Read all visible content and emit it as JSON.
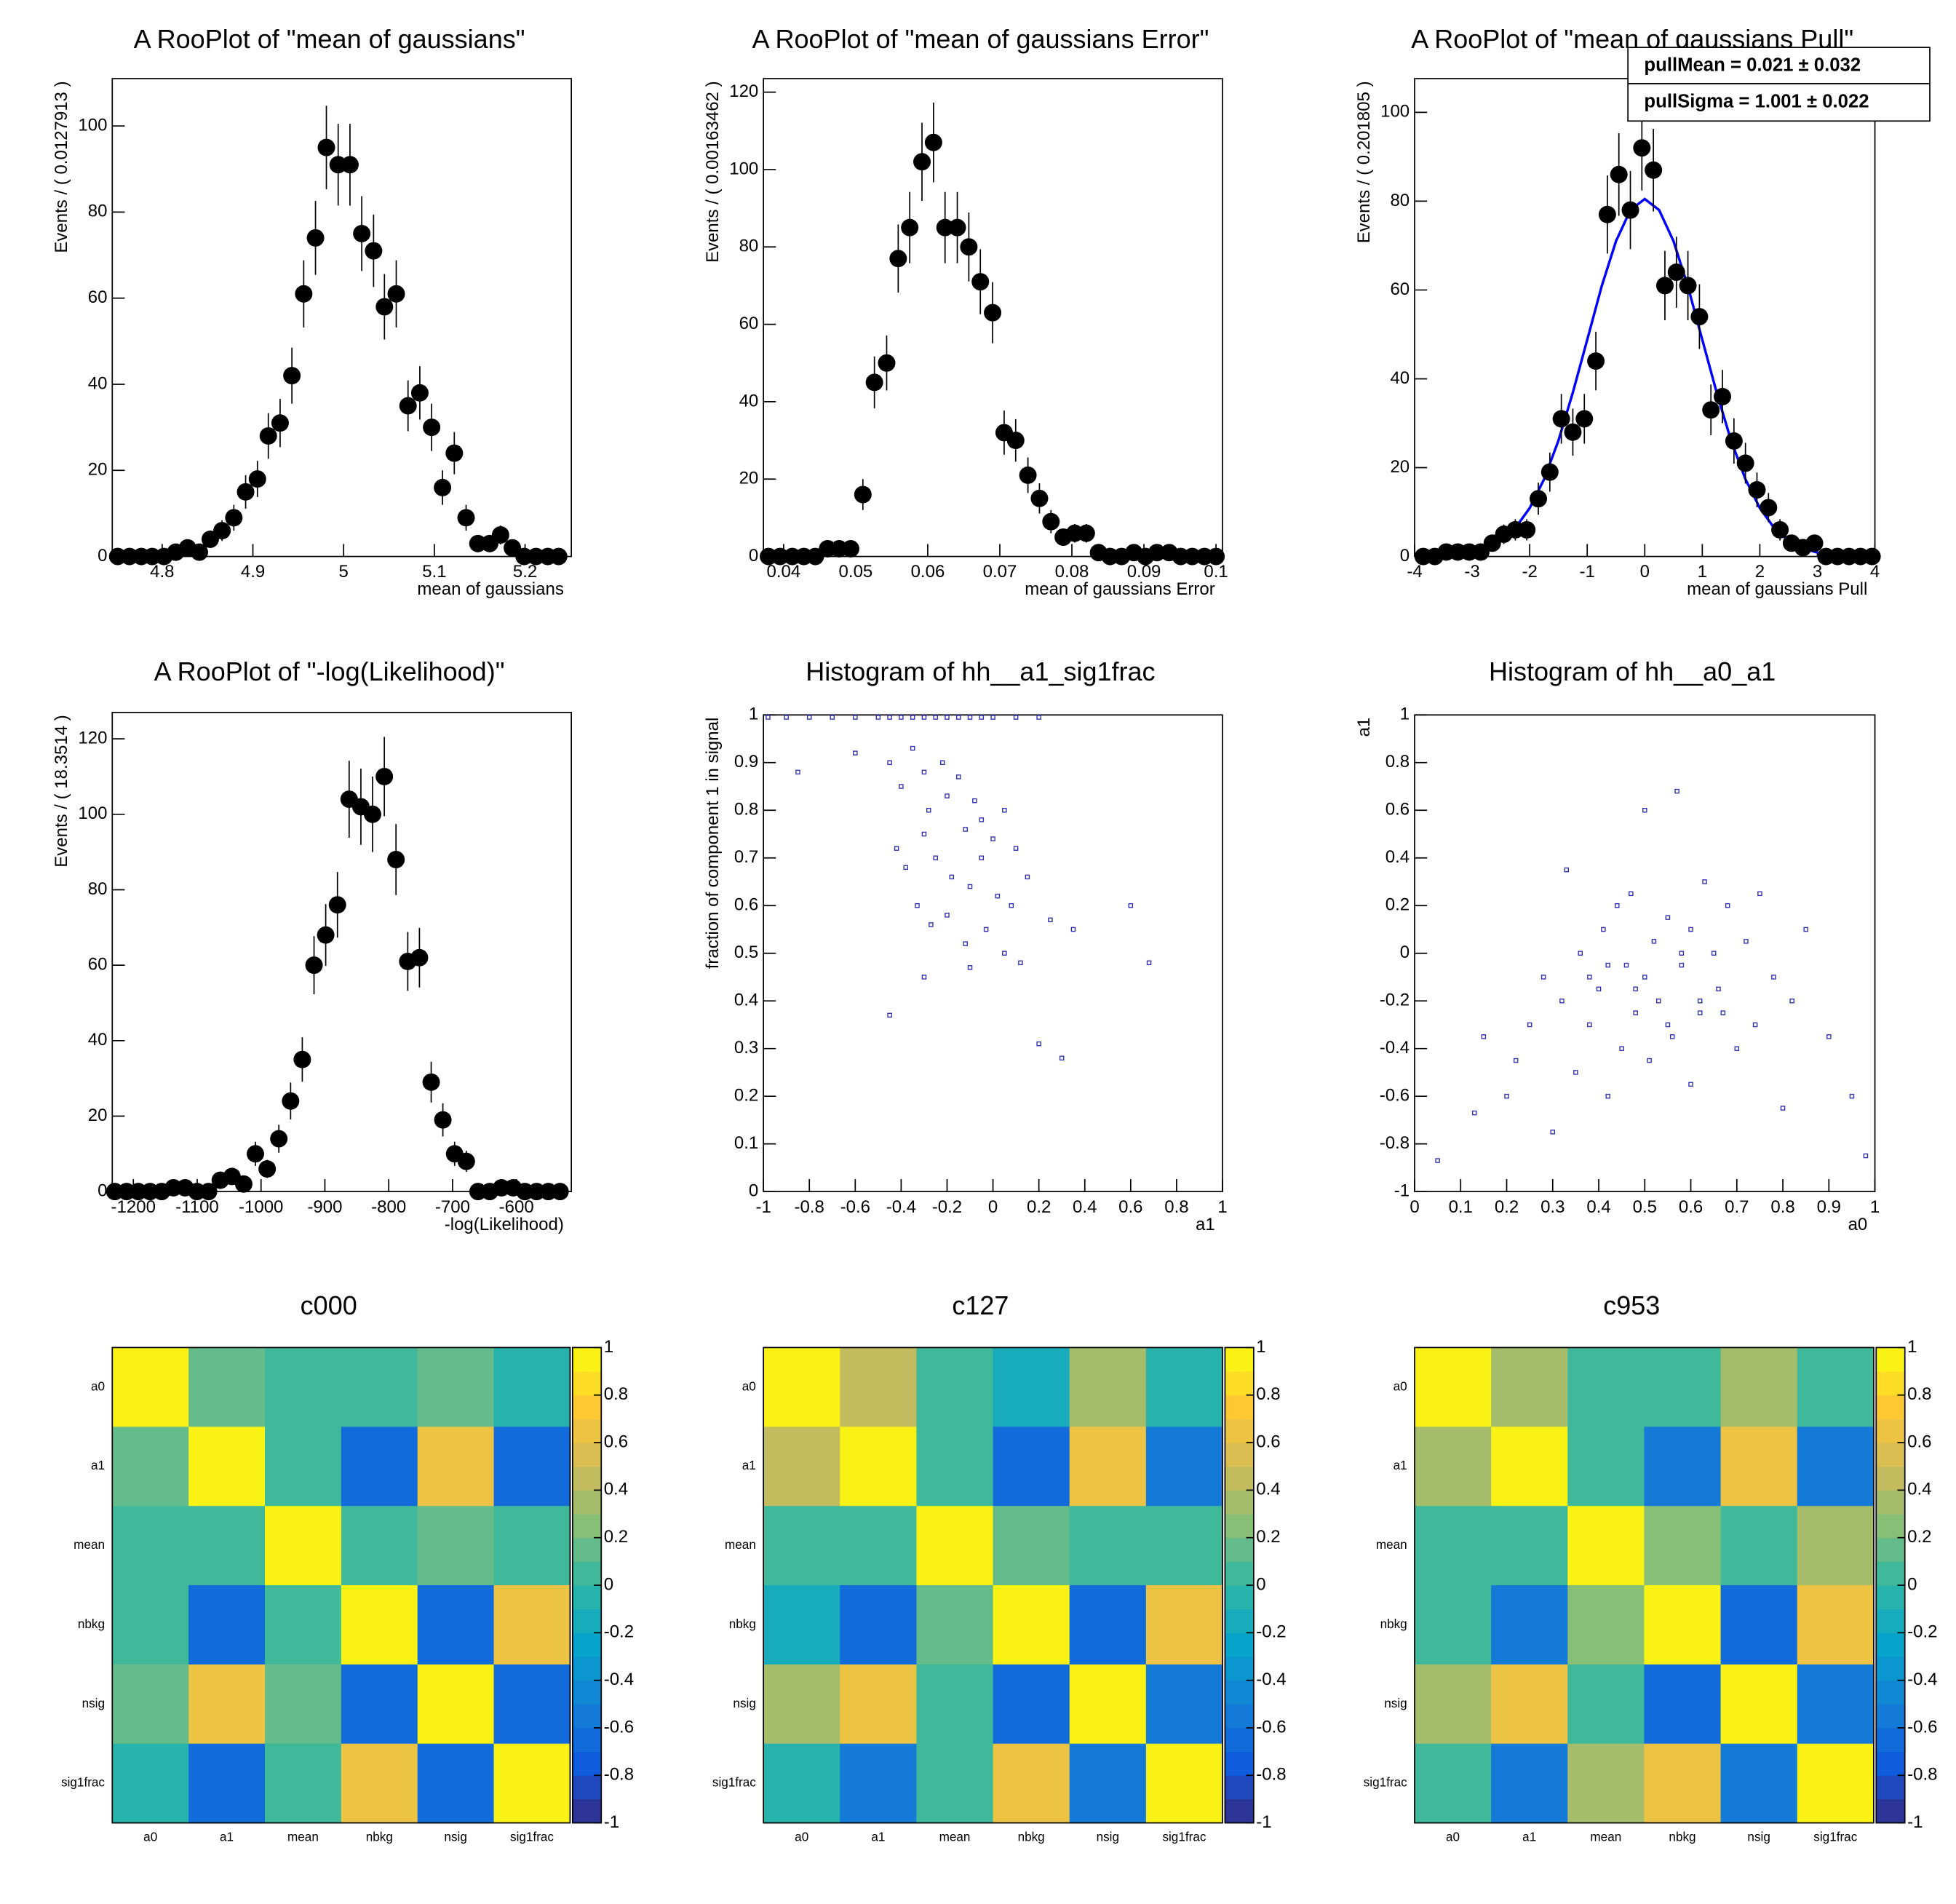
{
  "chart_data": [
    {
      "type": "errorbar",
      "title": "A RooPlot of \"mean of gaussians\"",
      "xlabel": "mean of gaussians",
      "ylabel": "Events / ( 0.0127913 )",
      "color": "#000000",
      "x": [
        4.751,
        4.764,
        4.777,
        4.789,
        4.802,
        4.815,
        4.828,
        4.841,
        4.853,
        4.866,
        4.879,
        4.892,
        4.905,
        4.917,
        4.93,
        4.943,
        4.956,
        4.969,
        4.981,
        4.994,
        5.007,
        5.02,
        5.033,
        5.045,
        5.058,
        5.071,
        5.084,
        5.097,
        5.109,
        5.122,
        5.135,
        5.148,
        5.161,
        5.173,
        5.186,
        5.199,
        5.212,
        5.225,
        5.237
      ],
      "values": [
        0,
        0,
        0,
        0,
        0,
        1,
        2,
        1,
        4,
        6,
        9,
        15,
        18,
        28,
        31,
        42,
        61,
        74,
        95,
        91,
        91,
        75,
        71,
        58,
        61,
        35,
        38,
        30,
        16,
        24,
        9,
        3,
        3,
        5,
        2,
        0,
        0,
        0,
        0
      ],
      "errors": [
        0,
        0,
        0,
        0,
        0,
        1,
        1.4,
        1,
        2,
        2.4,
        3,
        3.9,
        4.2,
        5.3,
        5.6,
        6.5,
        7.8,
        8.6,
        9.7,
        9.5,
        9.5,
        8.7,
        8.4,
        7.6,
        7.8,
        5.9,
        6.2,
        5.5,
        4,
        4.9,
        3,
        1.7,
        1.7,
        2.2,
        1.4,
        0,
        0,
        0,
        0
      ],
      "xlim": [
        4.745,
        5.251
      ],
      "xticks": [
        4.8,
        4.9,
        5,
        5.1,
        5.2
      ],
      "ylim": [
        0,
        111
      ],
      "yticks": [
        0,
        20,
        40,
        60,
        80,
        100
      ]
    },
    {
      "type": "errorbar",
      "title": "A RooPlot of \"mean of gaussians Error\"",
      "xlabel": "mean of gaussians Error",
      "ylabel": "Events / ( 0.00163462 )",
      "color": "#000000",
      "x": [
        0.0379,
        0.0395,
        0.0412,
        0.0428,
        0.0444,
        0.0461,
        0.0477,
        0.0493,
        0.051,
        0.0526,
        0.0543,
        0.0559,
        0.0575,
        0.0592,
        0.0608,
        0.0624,
        0.0641,
        0.0657,
        0.0673,
        0.069,
        0.0706,
        0.0722,
        0.0739,
        0.0755,
        0.0771,
        0.0788,
        0.0804,
        0.082,
        0.0837,
        0.0853,
        0.0869,
        0.0886,
        0.0902,
        0.0918,
        0.0935,
        0.0951,
        0.0967,
        0.0984,
        0.1
      ],
      "values": [
        0,
        0,
        0,
        0,
        0,
        2,
        2,
        2,
        16,
        45,
        50,
        77,
        85,
        102,
        107,
        85,
        85,
        80,
        71,
        63,
        32,
        30,
        21,
        15,
        9,
        5,
        6,
        6,
        1,
        0,
        0,
        1,
        0,
        1,
        1,
        0,
        0,
        0,
        0
      ],
      "errors": [
        0,
        0,
        0,
        0,
        0,
        1.4,
        1.4,
        1.4,
        4,
        6.7,
        7.1,
        8.8,
        9.2,
        10.1,
        10.3,
        9.2,
        9.2,
        8.9,
        8.4,
        7.9,
        5.7,
        5.5,
        4.6,
        3.9,
        3,
        2.2,
        2.4,
        2.4,
        1,
        0,
        0,
        1,
        0,
        1,
        1,
        0,
        0,
        0,
        0
      ],
      "xlim": [
        0.0372,
        0.1009
      ],
      "xticks": [
        0.04,
        0.05,
        0.06,
        0.07,
        0.08,
        0.09,
        0.1
      ],
      "ylim": [
        0,
        123.5
      ],
      "yticks": [
        0,
        20,
        40,
        60,
        80,
        100,
        120
      ]
    },
    {
      "type": "errorbar",
      "title": "A RooPlot of \"mean of gaussians Pull\"",
      "xlabel": "mean of gaussians Pull",
      "ylabel": "Events / ( 0.201805 )",
      "color": "#000000",
      "x": [
        -3.85,
        -3.65,
        -3.45,
        -3.25,
        -3.05,
        -2.85,
        -2.65,
        -2.45,
        -2.25,
        -2.05,
        -1.85,
        -1.65,
        -1.45,
        -1.25,
        -1.05,
        -0.85,
        -0.65,
        -0.45,
        -0.25,
        -0.05,
        0.15,
        0.35,
        0.55,
        0.75,
        0.95,
        1.15,
        1.35,
        1.55,
        1.75,
        1.95,
        2.15,
        2.35,
        2.55,
        2.75,
        2.95,
        3.15,
        3.35,
        3.55,
        3.75,
        3.95
      ],
      "values": [
        0,
        0,
        1,
        1,
        1,
        1,
        3,
        5,
        6,
        6,
        13,
        19,
        31,
        28,
        31,
        44,
        77,
        86,
        78,
        92,
        87,
        61,
        64,
        61,
        54,
        33,
        36,
        26,
        21,
        15,
        11,
        6,
        3,
        2,
        3,
        0,
        0,
        0,
        0,
        0
      ],
      "errors": [
        0,
        0,
        1,
        1,
        1,
        1,
        1.7,
        2.2,
        2.4,
        2.4,
        3.6,
        4.4,
        5.6,
        5.3,
        5.6,
        6.6,
        8.8,
        9.3,
        8.8,
        9.6,
        9.3,
        7.8,
        8,
        7.8,
        7.3,
        5.7,
        6,
        5.1,
        4.6,
        3.9,
        3.3,
        2.4,
        1.7,
        1.4,
        1.7,
        0,
        0,
        0,
        0,
        0
      ],
      "fit": {
        "color": "#0000ff",
        "x": [
          -4,
          -3.75,
          -3.5,
          -3.25,
          -3,
          -2.75,
          -2.5,
          -2.25,
          -2,
          -1.75,
          -1.5,
          -1.25,
          -1,
          -0.75,
          -0.5,
          -0.25,
          0,
          0.25,
          0.5,
          0.75,
          1,
          1.25,
          1.5,
          1.75,
          2,
          2.25,
          2.5,
          2.75,
          3,
          3.25,
          3.5,
          3.75,
          4
        ],
        "values": [
          0.03,
          0.07,
          0.18,
          0.41,
          0.89,
          1.84,
          3.53,
          6.41,
          10.9,
          17.4,
          26.1,
          36.9,
          48.8,
          60.8,
          71.0,
          78.0,
          80.5,
          78.0,
          71.0,
          60.8,
          48.8,
          36.9,
          26.1,
          17.4,
          10.9,
          6.41,
          3.53,
          1.84,
          0.89,
          0.41,
          0.18,
          0.07,
          0.03
        ]
      },
      "stats": [
        "pullMean =  0.021 ± 0.032",
        "pullSigma =  1.001 ± 0.022"
      ],
      "xlim": [
        -4,
        4
      ],
      "xticks": [
        -4,
        -3,
        -2,
        -1,
        0,
        1,
        2,
        3,
        4
      ],
      "ylim": [
        0,
        107.6
      ],
      "yticks": [
        0,
        20,
        40,
        60,
        80,
        100
      ]
    },
    {
      "type": "errorbar",
      "title": "A RooPlot of \"-log(Likelihood)\"",
      "xlabel": "-log(Likelihood)",
      "ylabel": "Events / ( 18.3514 )",
      "color": "#000000",
      "x": [
        -1229,
        -1210.6,
        -1192.3,
        -1173.9,
        -1155.6,
        -1137.2,
        -1118.9,
        -1100.5,
        -1082.2,
        -1063.8,
        -1045.5,
        -1027.1,
        -1008.8,
        -990.4,
        -972.1,
        -953.7,
        -935.4,
        -917.0,
        -898.7,
        -880.3,
        -862.0,
        -843.6,
        -825.3,
        -806.9,
        -788.6,
        -770.2,
        -751.9,
        -733.5,
        -715.2,
        -696.8,
        -678.5,
        -660.1,
        -641.8,
        -623.4,
        -605.1,
        -586.7,
        -568.4,
        -550.0,
        -531.7
      ],
      "values": [
        0,
        0,
        0,
        0,
        0,
        1,
        1,
        0,
        0,
        3,
        4,
        2,
        10,
        6,
        14,
        24,
        35,
        60,
        68,
        76,
        104,
        102,
        100,
        110,
        88,
        61,
        62,
        29,
        19,
        10,
        8,
        0,
        0,
        1,
        1,
        0,
        0,
        0,
        0
      ],
      "errors": [
        0,
        0,
        0,
        0,
        0,
        1,
        1,
        0,
        0,
        1.7,
        2,
        1.4,
        3.2,
        2.4,
        3.7,
        4.9,
        5.9,
        7.7,
        8.2,
        8.7,
        10.2,
        10.1,
        10,
        10.5,
        9.4,
        7.8,
        7.9,
        5.4,
        4.4,
        3.2,
        2.8,
        0,
        0,
        1,
        1,
        0,
        0,
        0,
        0
      ],
      "xlim": [
        -1233,
        -514
      ],
      "xticks": [
        -1200,
        -1100,
        -1000,
        -900,
        -800,
        -700,
        -600
      ],
      "ylim": [
        0,
        127
      ],
      "yticks": [
        0,
        20,
        40,
        60,
        80,
        100,
        120
      ]
    },
    {
      "type": "scatter",
      "title": "Histogram of hh__a1_sig1frac",
      "xlabel": "a1",
      "ylabel": "fraction of component 1 in signal",
      "color": "#3030b0",
      "x": [
        -0.98,
        -0.9,
        -0.8,
        -0.7,
        -0.6,
        -0.5,
        -0.45,
        -0.4,
        -0.35,
        -0.3,
        -0.25,
        -0.2,
        -0.15,
        -0.1,
        -0.05,
        0.0,
        0.1,
        0.2,
        -0.85,
        -0.6,
        -0.45,
        -0.4,
        -0.35,
        -0.3,
        -0.28,
        -0.22,
        -0.2,
        -0.15,
        -0.12,
        -0.08,
        -0.05,
        0.0,
        0.05,
        0.1,
        -0.42,
        -0.38,
        -0.3,
        -0.25,
        -0.18,
        -0.1,
        -0.05,
        0.02,
        0.08,
        0.15,
        -0.33,
        -0.27,
        -0.2,
        -0.12,
        -0.03,
        0.05,
        0.12,
        0.25,
        0.35,
        0.6,
        0.68,
        -0.45,
        -0.3,
        -0.1,
        0.2,
        0.3
      ],
      "values": [
        0.995,
        0.995,
        0.995,
        0.995,
        0.995,
        0.995,
        0.995,
        0.995,
        0.995,
        0.995,
        0.995,
        0.995,
        0.995,
        0.995,
        0.995,
        0.995,
        0.995,
        0.995,
        0.88,
        0.92,
        0.9,
        0.85,
        0.93,
        0.88,
        0.8,
        0.9,
        0.83,
        0.87,
        0.76,
        0.82,
        0.78,
        0.74,
        0.8,
        0.72,
        0.72,
        0.68,
        0.75,
        0.7,
        0.66,
        0.64,
        0.7,
        0.62,
        0.6,
        0.66,
        0.6,
        0.56,
        0.58,
        0.52,
        0.55,
        0.5,
        0.48,
        0.57,
        0.55,
        0.6,
        0.48,
        0.37,
        0.45,
        0.47,
        0.31,
        0.28
      ],
      "xlim": [
        -1,
        1
      ],
      "xticks": [
        -1,
        -0.8,
        -0.6,
        -0.4,
        -0.2,
        0,
        0.2,
        0.4,
        0.6,
        0.8,
        1
      ],
      "ylim": [
        0,
        1
      ],
      "yticks": [
        0,
        0.1,
        0.2,
        0.3,
        0.4,
        0.5,
        0.6,
        0.7,
        0.8,
        0.9,
        1
      ]
    },
    {
      "type": "scatter",
      "title": "Histogram of hh__a0_a1",
      "xlabel": "a0",
      "ylabel": "a1",
      "color": "#3030b0",
      "x": [
        0.05,
        0.13,
        0.15,
        0.2,
        0.22,
        0.25,
        0.28,
        0.3,
        0.32,
        0.33,
        0.35,
        0.36,
        0.38,
        0.4,
        0.41,
        0.42,
        0.44,
        0.45,
        0.46,
        0.47,
        0.48,
        0.5,
        0.5,
        0.51,
        0.52,
        0.53,
        0.55,
        0.56,
        0.57,
        0.58,
        0.6,
        0.6,
        0.62,
        0.63,
        0.65,
        0.66,
        0.68,
        0.7,
        0.72,
        0.74,
        0.75,
        0.78,
        0.8,
        0.82,
        0.85,
        0.9,
        0.95,
        0.98,
        0.42,
        0.55,
        0.62,
        0.38,
        0.48,
        0.58,
        0.67
      ],
      "values": [
        -0.87,
        -0.67,
        -0.35,
        -0.6,
        -0.45,
        -0.3,
        -0.1,
        -0.75,
        -0.2,
        0.35,
        -0.5,
        0.0,
        -0.3,
        -0.15,
        0.1,
        -0.6,
        0.2,
        -0.4,
        -0.05,
        0.25,
        -0.25,
        -0.1,
        0.6,
        -0.45,
        0.05,
        -0.2,
        0.15,
        -0.35,
        0.68,
        -0.05,
        0.1,
        -0.55,
        -0.25,
        0.3,
        0.0,
        -0.15,
        0.2,
        -0.4,
        0.05,
        -0.3,
        0.25,
        -0.1,
        -0.65,
        -0.2,
        0.1,
        -0.35,
        -0.6,
        -0.85,
        -0.05,
        -0.3,
        -0.2,
        -0.1,
        -0.15,
        0.0,
        -0.25
      ],
      "xlim": [
        0,
        1
      ],
      "xticks": [
        0,
        0.1,
        0.2,
        0.3,
        0.4,
        0.5,
        0.6,
        0.7,
        0.8,
        0.9,
        1
      ],
      "ylim": [
        -1,
        1
      ],
      "yticks": [
        -1,
        -0.8,
        -0.6,
        -0.4,
        -0.2,
        0,
        0.2,
        0.4,
        0.6,
        0.8,
        1
      ]
    },
    {
      "type": "heatmap",
      "title": "c000",
      "categories": [
        "a0",
        "a1",
        "mean",
        "nbkg",
        "nsig",
        "sig1frac"
      ],
      "y_categories": [
        "a0",
        "a1",
        "mean",
        "nbkg",
        "nsig",
        "sig1frac"
      ],
      "values": [
        [
          1,
          0.15,
          0.05,
          0.05,
          0.15,
          -0.05
        ],
        [
          0.15,
          1,
          0.05,
          -0.65,
          0.65,
          -0.65
        ],
        [
          0.05,
          0.05,
          1,
          0.05,
          0.15,
          0.05
        ],
        [
          0.05,
          -0.65,
          0.05,
          1,
          -0.65,
          0.65
        ],
        [
          0.15,
          0.65,
          0.15,
          -0.65,
          1,
          -0.65
        ],
        [
          -0.05,
          -0.65,
          0.05,
          0.65,
          -0.65,
          1
        ]
      ],
      "zlim": [
        -1,
        1
      ],
      "zticks": [
        -1,
        -0.8,
        -0.6,
        -0.4,
        -0.2,
        0,
        0.2,
        0.4,
        0.6,
        0.8,
        1
      ],
      "palette": [
        "#352a87",
        "#0f5cdd",
        "#1481d6",
        "#06a4ca",
        "#2eb7a4",
        "#87bf77",
        "#d1bb59",
        "#fec832",
        "#f9fb0e"
      ]
    },
    {
      "type": "heatmap",
      "title": "c127",
      "categories": [
        "a0",
        "a1",
        "mean",
        "nbkg",
        "nsig",
        "sig1frac"
      ],
      "y_categories": [
        "a0",
        "a1",
        "mean",
        "nbkg",
        "nsig",
        "sig1frac"
      ],
      "values": [
        [
          1,
          0.45,
          0.0,
          -0.15,
          0.3,
          -0.05
        ],
        [
          0.45,
          1,
          0.0,
          -0.65,
          0.65,
          -0.6
        ],
        [
          0.0,
          0.0,
          1,
          0.15,
          0.05,
          0.05
        ],
        [
          -0.15,
          -0.65,
          0.15,
          1,
          -0.7,
          0.65
        ],
        [
          0.3,
          0.65,
          0.0,
          -0.7,
          1,
          -0.55
        ],
        [
          -0.05,
          -0.6,
          0.05,
          0.65,
          -0.55,
          1
        ]
      ],
      "zlim": [
        -1,
        1
      ],
      "zticks": [
        -1,
        -0.8,
        -0.6,
        -0.4,
        -0.2,
        0,
        0.2,
        0.4,
        0.6,
        0.8,
        1
      ],
      "palette": [
        "#352a87",
        "#0f5cdd",
        "#1481d6",
        "#06a4ca",
        "#2eb7a4",
        "#87bf77",
        "#d1bb59",
        "#fec832",
        "#f9fb0e"
      ]
    },
    {
      "type": "heatmap",
      "title": "c953",
      "categories": [
        "a0",
        "a1",
        "mean",
        "nbkg",
        "nsig",
        "sig1frac"
      ],
      "y_categories": [
        "a0",
        "a1",
        "mean",
        "nbkg",
        "nsig",
        "sig1frac"
      ],
      "values": [
        [
          1,
          0.35,
          0.0,
          0.0,
          0.3,
          0.0
        ],
        [
          0.35,
          1,
          0.0,
          -0.6,
          0.65,
          -0.6
        ],
        [
          0.0,
          0.0,
          1,
          0.2,
          0.0,
          0.3
        ],
        [
          0.0,
          -0.6,
          0.2,
          1,
          -0.7,
          0.65
        ],
        [
          0.3,
          0.65,
          0.0,
          -0.7,
          1,
          -0.6
        ],
        [
          0.0,
          -0.6,
          0.3,
          0.65,
          -0.6,
          1
        ]
      ],
      "zlim": [
        -1,
        1
      ],
      "zticks": [
        -1,
        -0.8,
        -0.6,
        -0.4,
        -0.2,
        0,
        0.2,
        0.4,
        0.6,
        0.8,
        1
      ],
      "palette": [
        "#352a87",
        "#0f5cdd",
        "#1481d6",
        "#06a4ca",
        "#2eb7a4",
        "#87bf77",
        "#d1bb59",
        "#fec832",
        "#f9fb0e"
      ]
    }
  ]
}
